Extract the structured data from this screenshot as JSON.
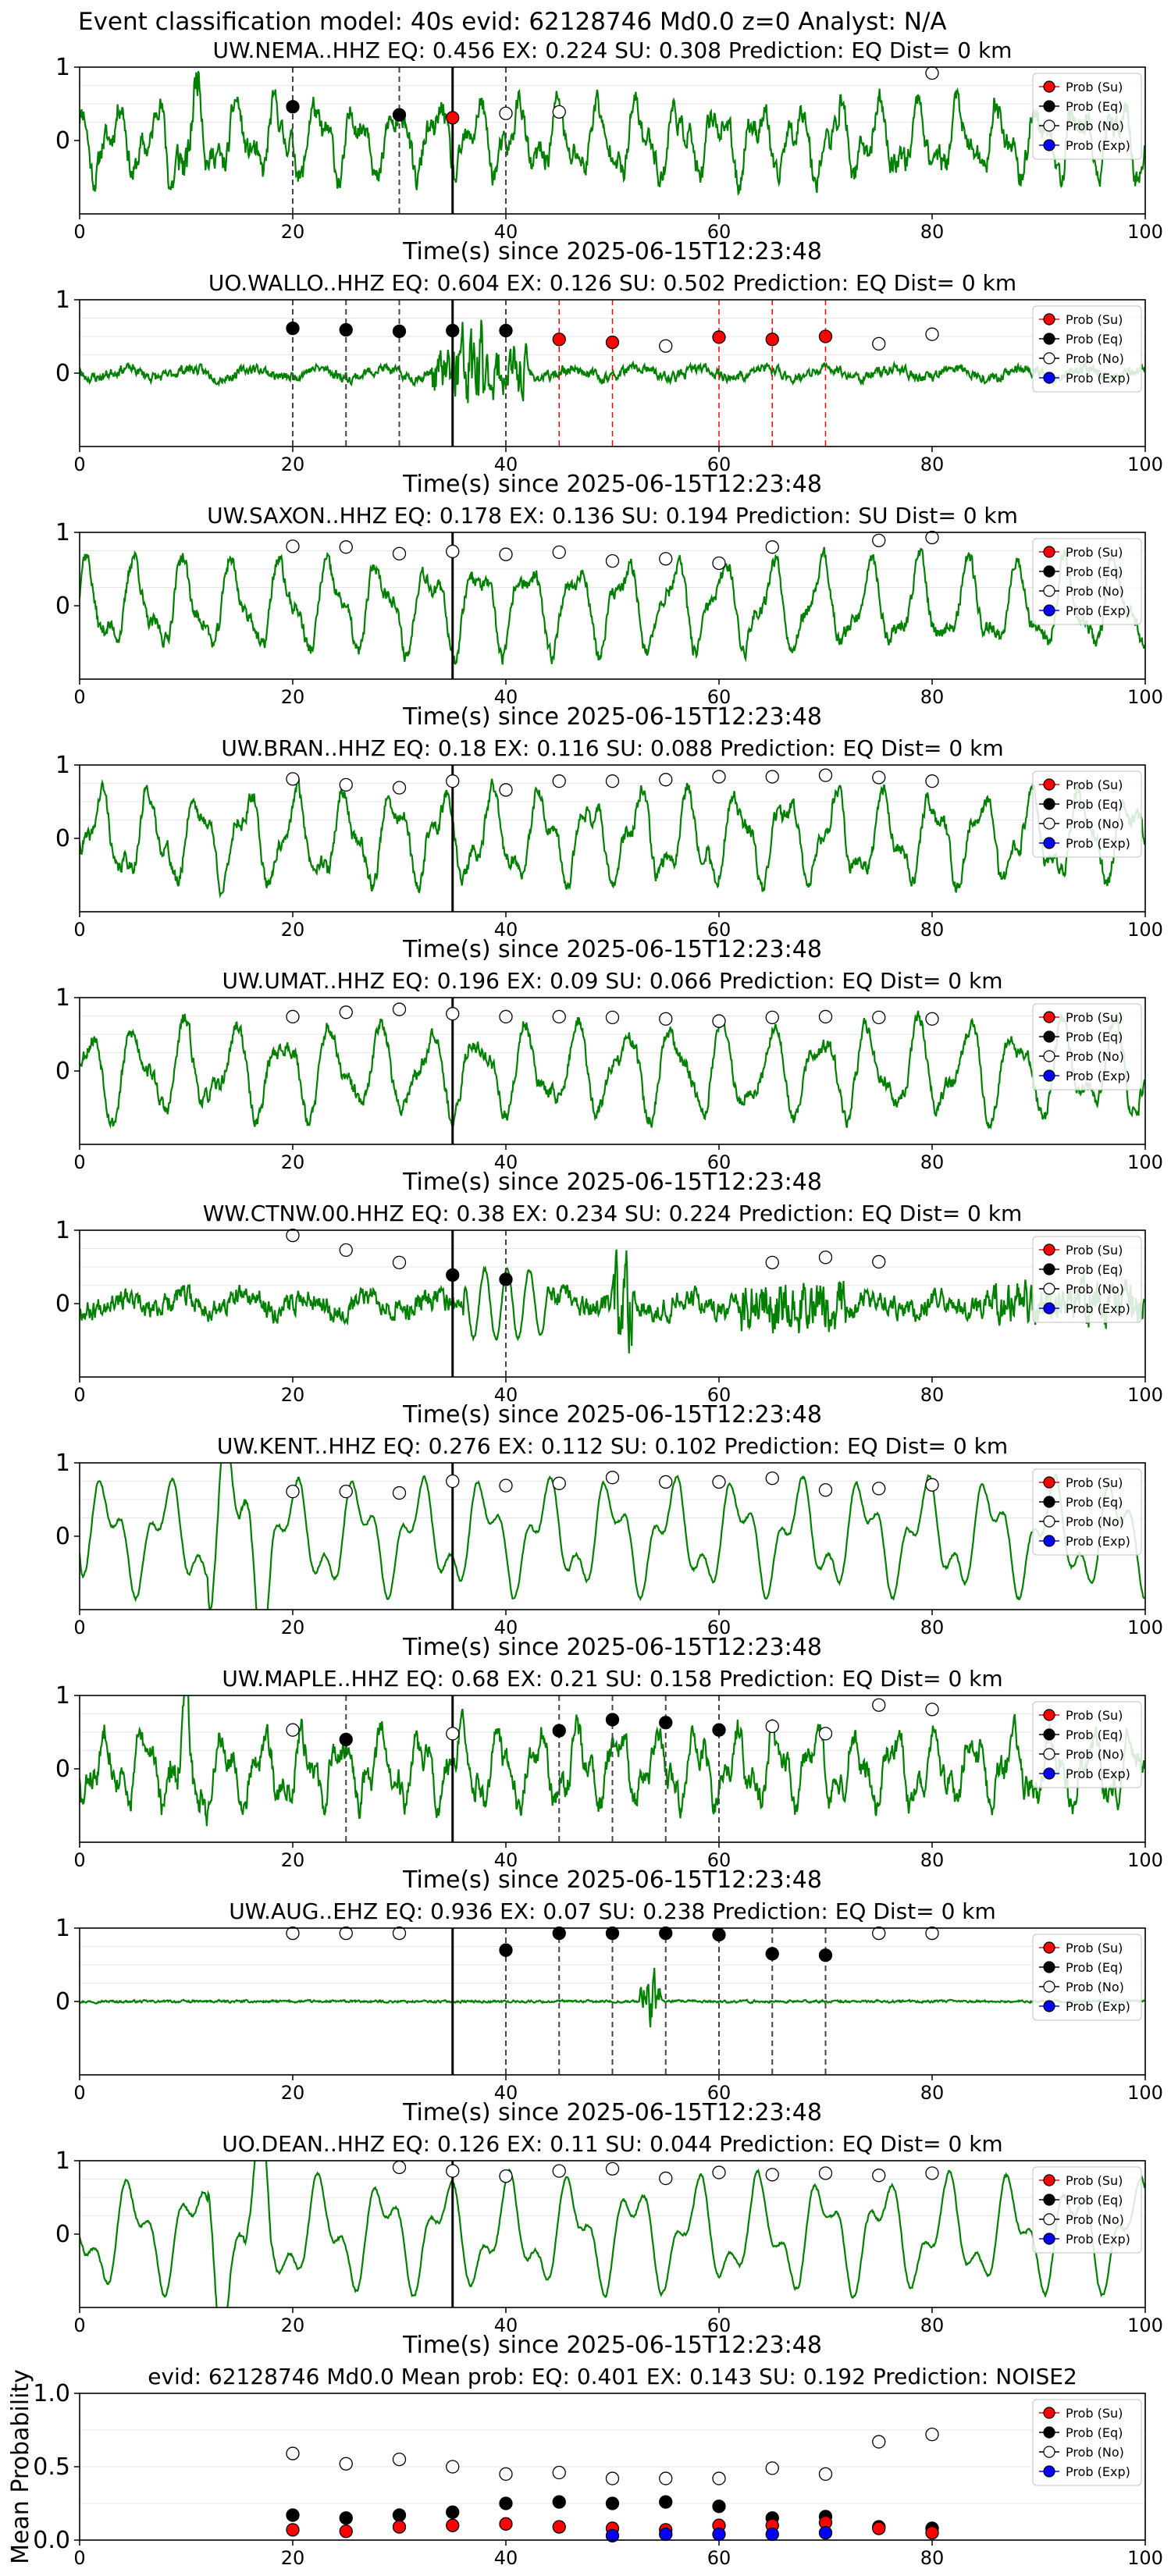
{
  "figure_title": "Event classification model: 40s evid: 62128746 Md0.0 z=0 Analyst: N/A",
  "x_axis_label": "Time(s) since 2025-06-15T12:23:48",
  "legend": [
    "Prob (Su)",
    "Prob (Eq)",
    "Prob (No)",
    "Prob (Exp)"
  ],
  "colors": {
    "wave": "#008000",
    "su": "#ff0000",
    "eq": "#000000",
    "no": "#ffffff",
    "exp": "#0000ff",
    "su_line": "#ff0000",
    "eq_line": "#444444"
  },
  "chart_data": [
    {
      "type": "line",
      "title": "UW.NEMA..HHZ   EQ: 0.456  EX: 0.224  SU: 0.308   Prediction: EQ    Dist= 0 km",
      "xlim": [
        0,
        100
      ],
      "ylim": [
        -1,
        1
      ],
      "xticks": [
        "0",
        "20",
        "40",
        "60",
        "80",
        "100"
      ],
      "yticks": [
        "1",
        "0"
      ],
      "pick": 35,
      "seed": 11,
      "profile": "noise-mid",
      "eq_lines": [
        20,
        30,
        40
      ],
      "su_lines": [],
      "points": [
        {
          "x": 20,
          "y": 0.46,
          "c": "eq"
        },
        {
          "x": 30,
          "y": 0.35,
          "c": "eq"
        },
        {
          "x": 35,
          "y": 0.31,
          "c": "su"
        },
        {
          "x": 40,
          "y": 0.37,
          "c": "no"
        },
        {
          "x": 45,
          "y": 0.39,
          "c": "no"
        },
        {
          "x": 80,
          "y": 0.92,
          "c": "no"
        }
      ]
    },
    {
      "type": "line",
      "title": "UO.WALLO..HHZ   EQ: 0.604  EX: 0.126  SU: 0.502   Prediction: EQ    Dist= 0 km",
      "xlim": [
        0,
        100
      ],
      "ylim": [
        -1,
        1
      ],
      "xticks": [
        "0",
        "20",
        "40",
        "60",
        "80",
        "100"
      ],
      "yticks": [
        "1",
        "0"
      ],
      "pick": 35,
      "seed": 23,
      "profile": "burst",
      "eq_lines": [
        20,
        25,
        30,
        40
      ],
      "su_lines": [
        45,
        50,
        60,
        65,
        70
      ],
      "points": [
        {
          "x": 20,
          "y": 0.61,
          "c": "eq"
        },
        {
          "x": 25,
          "y": 0.59,
          "c": "eq"
        },
        {
          "x": 30,
          "y": 0.57,
          "c": "eq"
        },
        {
          "x": 35,
          "y": 0.58,
          "c": "eq"
        },
        {
          "x": 40,
          "y": 0.58,
          "c": "eq"
        },
        {
          "x": 45,
          "y": 0.46,
          "c": "su"
        },
        {
          "x": 50,
          "y": 0.42,
          "c": "su"
        },
        {
          "x": 55,
          "y": 0.37,
          "c": "no"
        },
        {
          "x": 60,
          "y": 0.49,
          "c": "su"
        },
        {
          "x": 65,
          "y": 0.46,
          "c": "su"
        },
        {
          "x": 70,
          "y": 0.5,
          "c": "su"
        },
        {
          "x": 75,
          "y": 0.4,
          "c": "no"
        },
        {
          "x": 80,
          "y": 0.53,
          "c": "no"
        }
      ]
    },
    {
      "type": "line",
      "title": "UW.SAXON..HHZ   EQ: 0.178  EX: 0.136  SU: 0.194   Prediction: SU    Dist= 0 km",
      "xlim": [
        0,
        100
      ],
      "ylim": [
        -1,
        1
      ],
      "xticks": [
        "0",
        "20",
        "40",
        "60",
        "80",
        "100"
      ],
      "yticks": [
        "1",
        "0"
      ],
      "pick": 35,
      "seed": 37,
      "profile": "oscill",
      "eq_lines": [],
      "su_lines": [],
      "points": [
        {
          "x": 20,
          "y": 0.81,
          "c": "no"
        },
        {
          "x": 25,
          "y": 0.8,
          "c": "no"
        },
        {
          "x": 30,
          "y": 0.71,
          "c": "no"
        },
        {
          "x": 35,
          "y": 0.74,
          "c": "no"
        },
        {
          "x": 40,
          "y": 0.7,
          "c": "no"
        },
        {
          "x": 45,
          "y": 0.73,
          "c": "no"
        },
        {
          "x": 50,
          "y": 0.61,
          "c": "no"
        },
        {
          "x": 55,
          "y": 0.64,
          "c": "no"
        },
        {
          "x": 60,
          "y": 0.58,
          "c": "no"
        },
        {
          "x": 65,
          "y": 0.8,
          "c": "no"
        },
        {
          "x": 75,
          "y": 0.89,
          "c": "no"
        },
        {
          "x": 80,
          "y": 0.93,
          "c": "no"
        }
      ]
    },
    {
      "type": "line",
      "title": "UW.BRAN..HHZ   EQ: 0.18  EX: 0.116  SU: 0.088   Prediction: EQ    Dist= 0 km",
      "xlim": [
        0,
        100
      ],
      "ylim": [
        -1,
        1
      ],
      "xticks": [
        "0",
        "20",
        "40",
        "60",
        "80",
        "100"
      ],
      "yticks": [
        "1",
        "0"
      ],
      "pick": 35,
      "seed": 41,
      "profile": "oscill",
      "eq_lines": [],
      "su_lines": [],
      "points": [
        {
          "x": 20,
          "y": 0.81,
          "c": "no"
        },
        {
          "x": 25,
          "y": 0.73,
          "c": "no"
        },
        {
          "x": 30,
          "y": 0.69,
          "c": "no"
        },
        {
          "x": 35,
          "y": 0.78,
          "c": "no"
        },
        {
          "x": 40,
          "y": 0.66,
          "c": "no"
        },
        {
          "x": 45,
          "y": 0.78,
          "c": "no"
        },
        {
          "x": 50,
          "y": 0.78,
          "c": "no"
        },
        {
          "x": 55,
          "y": 0.8,
          "c": "no"
        },
        {
          "x": 60,
          "y": 0.84,
          "c": "no"
        },
        {
          "x": 65,
          "y": 0.84,
          "c": "no"
        },
        {
          "x": 70,
          "y": 0.86,
          "c": "no"
        },
        {
          "x": 75,
          "y": 0.83,
          "c": "no"
        },
        {
          "x": 80,
          "y": 0.78,
          "c": "no"
        }
      ]
    },
    {
      "type": "line",
      "title": "UW.UMAT..HHZ   EQ: 0.196  EX: 0.09  SU: 0.066   Prediction: EQ    Dist= 0 km",
      "xlim": [
        0,
        100
      ],
      "ylim": [
        -1,
        1
      ],
      "xticks": [
        "0",
        "20",
        "40",
        "60",
        "80",
        "100"
      ],
      "yticks": [
        "1",
        "0"
      ],
      "pick": 35,
      "seed": 53,
      "profile": "oscill",
      "eq_lines": [],
      "su_lines": [],
      "points": [
        {
          "x": 20,
          "y": 0.74,
          "c": "no"
        },
        {
          "x": 25,
          "y": 0.8,
          "c": "no"
        },
        {
          "x": 30,
          "y": 0.84,
          "c": "no"
        },
        {
          "x": 35,
          "y": 0.78,
          "c": "no"
        },
        {
          "x": 40,
          "y": 0.74,
          "c": "no"
        },
        {
          "x": 45,
          "y": 0.74,
          "c": "no"
        },
        {
          "x": 50,
          "y": 0.73,
          "c": "no"
        },
        {
          "x": 55,
          "y": 0.71,
          "c": "no"
        },
        {
          "x": 60,
          "y": 0.68,
          "c": "no"
        },
        {
          "x": 65,
          "y": 0.73,
          "c": "no"
        },
        {
          "x": 70,
          "y": 0.74,
          "c": "no"
        },
        {
          "x": 75,
          "y": 0.73,
          "c": "no"
        },
        {
          "x": 80,
          "y": 0.71,
          "c": "no"
        }
      ]
    },
    {
      "type": "line",
      "title": "WW.CTNW.00.HHZ   EQ: 0.38  EX: 0.234  SU: 0.224   Prediction: EQ    Dist= 0 km",
      "xlim": [
        0,
        100
      ],
      "ylim": [
        -1,
        1
      ],
      "xticks": [
        "0",
        "20",
        "40",
        "60",
        "80",
        "100"
      ],
      "yticks": [
        "1",
        "0"
      ],
      "pick": 35,
      "seed": 67,
      "profile": "dense",
      "eq_lines": [
        40
      ],
      "su_lines": [],
      "points": [
        {
          "x": 20,
          "y": 0.93,
          "c": "no"
        },
        {
          "x": 25,
          "y": 0.73,
          "c": "no"
        },
        {
          "x": 30,
          "y": 0.56,
          "c": "no"
        },
        {
          "x": 35,
          "y": 0.39,
          "c": "eq"
        },
        {
          "x": 40,
          "y": 0.33,
          "c": "eq"
        },
        {
          "x": 65,
          "y": 0.56,
          "c": "no"
        },
        {
          "x": 70,
          "y": 0.63,
          "c": "no"
        },
        {
          "x": 75,
          "y": 0.57,
          "c": "no"
        }
      ]
    },
    {
      "type": "line",
      "title": "UW.KENT..HHZ   EQ: 0.276  EX: 0.112  SU: 0.102   Prediction: EQ    Dist= 0 km",
      "xlim": [
        0,
        100
      ],
      "ylim": [
        -1,
        1
      ],
      "xticks": [
        "0",
        "20",
        "40",
        "60",
        "80",
        "100"
      ],
      "yticks": [
        "1",
        "0"
      ],
      "pick": 35,
      "seed": 79,
      "profile": "smooth",
      "eq_lines": [],
      "su_lines": [],
      "points": [
        {
          "x": 20,
          "y": 0.61,
          "c": "no"
        },
        {
          "x": 25,
          "y": 0.61,
          "c": "no"
        },
        {
          "x": 30,
          "y": 0.59,
          "c": "no"
        },
        {
          "x": 35,
          "y": 0.75,
          "c": "no"
        },
        {
          "x": 40,
          "y": 0.69,
          "c": "no"
        },
        {
          "x": 45,
          "y": 0.72,
          "c": "no"
        },
        {
          "x": 50,
          "y": 0.8,
          "c": "no"
        },
        {
          "x": 55,
          "y": 0.74,
          "c": "no"
        },
        {
          "x": 60,
          "y": 0.74,
          "c": "no"
        },
        {
          "x": 65,
          "y": 0.79,
          "c": "no"
        },
        {
          "x": 70,
          "y": 0.63,
          "c": "no"
        },
        {
          "x": 75,
          "y": 0.65,
          "c": "no"
        },
        {
          "x": 80,
          "y": 0.7,
          "c": "no"
        }
      ]
    },
    {
      "type": "line",
      "title": "UW.MAPLE..HHZ   EQ: 0.68  EX: 0.21  SU: 0.158   Prediction: EQ    Dist= 0 km",
      "xlim": [
        0,
        100
      ],
      "ylim": [
        -1,
        1
      ],
      "xticks": [
        "0",
        "20",
        "40",
        "60",
        "80",
        "100"
      ],
      "yticks": [
        "1",
        "0"
      ],
      "pick": 35,
      "seed": 83,
      "profile": "noise-mid",
      "eq_lines": [
        25,
        45,
        50,
        55,
        60
      ],
      "su_lines": [],
      "points": [
        {
          "x": 20,
          "y": 0.53,
          "c": "no"
        },
        {
          "x": 25,
          "y": 0.4,
          "c": "eq"
        },
        {
          "x": 35,
          "y": 0.48,
          "c": "no"
        },
        {
          "x": 45,
          "y": 0.52,
          "c": "eq"
        },
        {
          "x": 50,
          "y": 0.67,
          "c": "eq"
        },
        {
          "x": 55,
          "y": 0.63,
          "c": "eq"
        },
        {
          "x": 60,
          "y": 0.53,
          "c": "eq"
        },
        {
          "x": 65,
          "y": 0.58,
          "c": "no"
        },
        {
          "x": 70,
          "y": 0.48,
          "c": "no"
        },
        {
          "x": 75,
          "y": 0.87,
          "c": "no"
        },
        {
          "x": 80,
          "y": 0.81,
          "c": "no"
        }
      ]
    },
    {
      "type": "line",
      "title": "UW.AUG..EHZ   EQ: 0.936  EX: 0.07  SU: 0.238   Prediction: EQ    Dist= 0 km",
      "xlim": [
        0,
        100
      ],
      "ylim": [
        -1,
        1
      ],
      "xticks": [
        "0",
        "20",
        "40",
        "60",
        "80",
        "100"
      ],
      "yticks": [
        "1",
        "0"
      ],
      "pick": 35,
      "seed": 97,
      "profile": "flat",
      "eq_lines": [
        40,
        45,
        50,
        55,
        60,
        65,
        70
      ],
      "su_lines": [],
      "points": [
        {
          "x": 20,
          "y": 0.93,
          "c": "no"
        },
        {
          "x": 25,
          "y": 0.93,
          "c": "no"
        },
        {
          "x": 30,
          "y": 0.93,
          "c": "no"
        },
        {
          "x": 40,
          "y": 0.7,
          "c": "eq"
        },
        {
          "x": 45,
          "y": 0.93,
          "c": "eq"
        },
        {
          "x": 50,
          "y": 0.93,
          "c": "eq"
        },
        {
          "x": 55,
          "y": 0.93,
          "c": "eq"
        },
        {
          "x": 60,
          "y": 0.91,
          "c": "eq"
        },
        {
          "x": 65,
          "y": 0.65,
          "c": "eq"
        },
        {
          "x": 70,
          "y": 0.63,
          "c": "eq"
        },
        {
          "x": 75,
          "y": 0.93,
          "c": "no"
        },
        {
          "x": 80,
          "y": 0.93,
          "c": "no"
        }
      ]
    },
    {
      "type": "line",
      "title": "UO.DEAN..HHZ   EQ: 0.126  EX: 0.11  SU: 0.044   Prediction: EQ    Dist= 0 km",
      "xlim": [
        0,
        100
      ],
      "ylim": [
        -1,
        1
      ],
      "xticks": [
        "0",
        "20",
        "40",
        "60",
        "80",
        "100"
      ],
      "yticks": [
        "1",
        "0"
      ],
      "pick": 35,
      "seed": 109,
      "profile": "smooth",
      "eq_lines": [],
      "su_lines": [],
      "points": [
        {
          "x": 30,
          "y": 0.91,
          "c": "no"
        },
        {
          "x": 35,
          "y": 0.86,
          "c": "no"
        },
        {
          "x": 40,
          "y": 0.79,
          "c": "no"
        },
        {
          "x": 45,
          "y": 0.86,
          "c": "no"
        },
        {
          "x": 50,
          "y": 0.89,
          "c": "no"
        },
        {
          "x": 55,
          "y": 0.76,
          "c": "no"
        },
        {
          "x": 60,
          "y": 0.84,
          "c": "no"
        },
        {
          "x": 65,
          "y": 0.81,
          "c": "no"
        },
        {
          "x": 70,
          "y": 0.83,
          "c": "no"
        },
        {
          "x": 75,
          "y": 0.8,
          "c": "no"
        },
        {
          "x": 80,
          "y": 0.83,
          "c": "no"
        }
      ]
    },
    {
      "type": "scatter",
      "title": "evid: 62128746  Md0.0   Mean prob:   EQ: 0.401  EX: 0.143  SU: 0.192   Prediction: NOISE2",
      "ylabel": "Mean Probability",
      "xlim": [
        0,
        100
      ],
      "ylim": [
        0,
        1
      ],
      "xticks": [
        "0",
        "20",
        "40",
        "60",
        "80",
        "100"
      ],
      "yticks": [
        "1.0",
        "0.5",
        "0.0"
      ],
      "points": [
        {
          "x": 20,
          "y": 0.59,
          "c": "no"
        },
        {
          "x": 25,
          "y": 0.52,
          "c": "no"
        },
        {
          "x": 30,
          "y": 0.55,
          "c": "no"
        },
        {
          "x": 35,
          "y": 0.5,
          "c": "no"
        },
        {
          "x": 40,
          "y": 0.45,
          "c": "no"
        },
        {
          "x": 45,
          "y": 0.46,
          "c": "no"
        },
        {
          "x": 50,
          "y": 0.42,
          "c": "no"
        },
        {
          "x": 55,
          "y": 0.42,
          "c": "no"
        },
        {
          "x": 60,
          "y": 0.42,
          "c": "no"
        },
        {
          "x": 65,
          "y": 0.49,
          "c": "no"
        },
        {
          "x": 70,
          "y": 0.45,
          "c": "no"
        },
        {
          "x": 75,
          "y": 0.67,
          "c": "no"
        },
        {
          "x": 80,
          "y": 0.72,
          "c": "no"
        },
        {
          "x": 20,
          "y": 0.17,
          "c": "eq"
        },
        {
          "x": 25,
          "y": 0.15,
          "c": "eq"
        },
        {
          "x": 30,
          "y": 0.17,
          "c": "eq"
        },
        {
          "x": 35,
          "y": 0.19,
          "c": "eq"
        },
        {
          "x": 40,
          "y": 0.25,
          "c": "eq"
        },
        {
          "x": 45,
          "y": 0.26,
          "c": "eq"
        },
        {
          "x": 50,
          "y": 0.25,
          "c": "eq"
        },
        {
          "x": 55,
          "y": 0.26,
          "c": "eq"
        },
        {
          "x": 60,
          "y": 0.23,
          "c": "eq"
        },
        {
          "x": 65,
          "y": 0.15,
          "c": "eq"
        },
        {
          "x": 70,
          "y": 0.16,
          "c": "eq"
        },
        {
          "x": 75,
          "y": 0.09,
          "c": "eq"
        },
        {
          "x": 80,
          "y": 0.08,
          "c": "eq"
        },
        {
          "x": 20,
          "y": 0.07,
          "c": "su"
        },
        {
          "x": 25,
          "y": 0.06,
          "c": "su"
        },
        {
          "x": 30,
          "y": 0.09,
          "c": "su"
        },
        {
          "x": 35,
          "y": 0.1,
          "c": "su"
        },
        {
          "x": 40,
          "y": 0.11,
          "c": "su"
        },
        {
          "x": 45,
          "y": 0.09,
          "c": "su"
        },
        {
          "x": 50,
          "y": 0.08,
          "c": "su"
        },
        {
          "x": 55,
          "y": 0.07,
          "c": "su"
        },
        {
          "x": 60,
          "y": 0.1,
          "c": "su"
        },
        {
          "x": 65,
          "y": 0.1,
          "c": "su"
        },
        {
          "x": 70,
          "y": 0.12,
          "c": "su"
        },
        {
          "x": 75,
          "y": 0.08,
          "c": "su"
        },
        {
          "x": 80,
          "y": 0.05,
          "c": "su"
        },
        {
          "x": 50,
          "y": 0.03,
          "c": "exp"
        },
        {
          "x": 55,
          "y": 0.04,
          "c": "exp"
        },
        {
          "x": 60,
          "y": 0.04,
          "c": "exp"
        },
        {
          "x": 65,
          "y": 0.04,
          "c": "exp"
        },
        {
          "x": 70,
          "y": 0.05,
          "c": "exp"
        }
      ]
    }
  ]
}
